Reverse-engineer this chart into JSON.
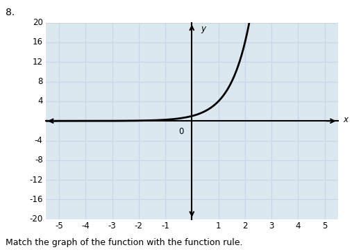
{
  "title_label": "8.",
  "xlabel": "x",
  "ylabel": "y",
  "xlim": [
    -5.5,
    5.5
  ],
  "ylim": [
    -20,
    20
  ],
  "xticks": [
    -5,
    -4,
    -3,
    -2,
    -1,
    0,
    1,
    2,
    3,
    4,
    5
  ],
  "yticks": [
    -20,
    -16,
    -12,
    -8,
    -4,
    0,
    4,
    8,
    12,
    16,
    20
  ],
  "grid_color": "#c8d8e8",
  "background_color": "#dce8f0",
  "axes_color": "#000000",
  "curve_color": "#000000",
  "func_a": 1,
  "func_b": 4,
  "x_curve_min": -5.5,
  "x_curve_max": 2.16,
  "bottom_text": "Match the graph of the function with the function rule.",
  "font_size_bottom": 9,
  "font_size_tick": 8.5,
  "font_size_number": 10
}
